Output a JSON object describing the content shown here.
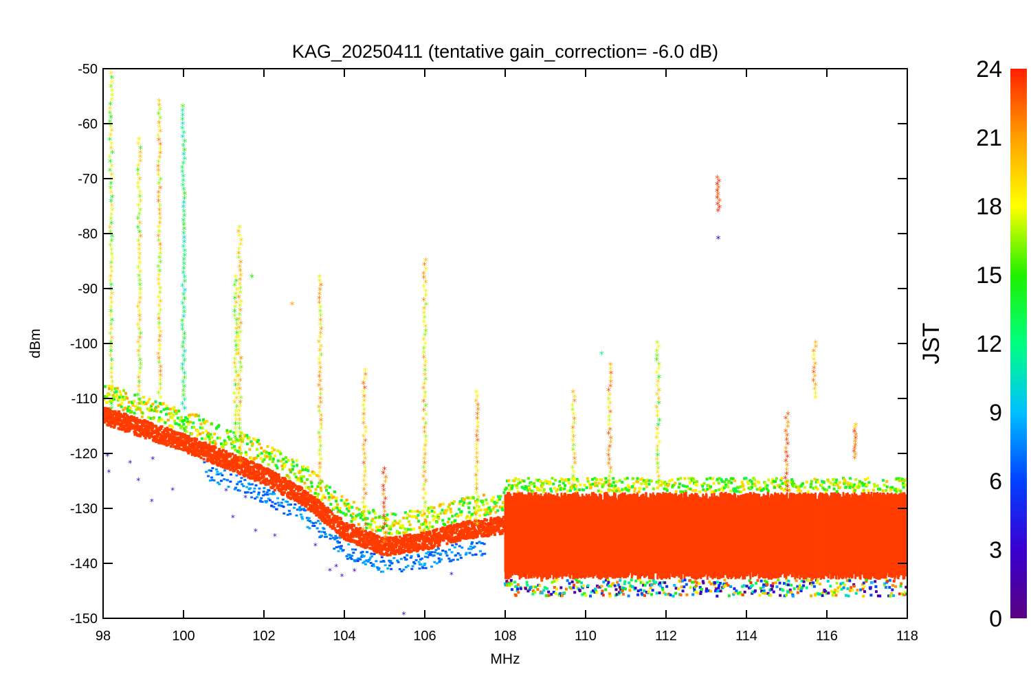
{
  "chart_data": {
    "type": "scatter",
    "title": "KAG_20250411 (tentative gain_correction= -6.0 dB)",
    "xlabel": "MHz",
    "ylabel": "dBm",
    "xlim": [
      98,
      118
    ],
    "ylim": [
      -150,
      -50
    ],
    "x_ticks": [
      98,
      100,
      102,
      104,
      106,
      108,
      110,
      112,
      114,
      116,
      118
    ],
    "y_ticks": [
      -50,
      -60,
      -70,
      -80,
      -90,
      -100,
      -110,
      -120,
      -130,
      -140,
      -150
    ],
    "grid": false,
    "colorbar": {
      "label": "JST",
      "range": [
        0,
        24
      ],
      "ticks": [
        0,
        3,
        6,
        9,
        12,
        15,
        18,
        21,
        24
      ],
      "colormap": "rainbow"
    },
    "noise_floor_fm": [
      {
        "x": 98.0,
        "y": -113
      },
      {
        "x": 100.0,
        "y": -118
      },
      {
        "x": 102.0,
        "y": -124
      },
      {
        "x": 103.0,
        "y": -128
      },
      {
        "x": 104.0,
        "y": -134
      },
      {
        "x": 105.0,
        "y": -137
      },
      {
        "x": 106.0,
        "y": -136
      },
      {
        "x": 107.0,
        "y": -134
      },
      {
        "x": 108.0,
        "y": -133
      }
    ],
    "noise_band_air": {
      "x_start": 108.0,
      "x_end": 118.0,
      "y_low": -143,
      "y_high": -127
    },
    "vertical_signals": [
      {
        "x": 98.2,
        "y_top": -51,
        "y_bottom": -112,
        "jst": 17
      },
      {
        "x": 98.9,
        "y_top": -63,
        "y_bottom": -112,
        "jst": 18
      },
      {
        "x": 99.4,
        "y_top": -56,
        "y_bottom": -110,
        "jst": 19
      },
      {
        "x": 100.0,
        "y_top": -57,
        "y_bottom": -112,
        "jst": 13
      },
      {
        "x": 101.3,
        "y_top": -88,
        "y_bottom": -118,
        "jst": 17
      },
      {
        "x": 101.4,
        "y_top": -79,
        "y_bottom": -122,
        "jst": 19
      },
      {
        "x": 103.4,
        "y_top": -88,
        "y_bottom": -126,
        "jst": 19
      },
      {
        "x": 104.5,
        "y_top": -105,
        "y_bottom": -134,
        "jst": 20
      },
      {
        "x": 105.0,
        "y_top": -123,
        "y_bottom": -137,
        "jst": 23
      },
      {
        "x": 106.0,
        "y_top": -85,
        "y_bottom": -134,
        "jst": 19
      },
      {
        "x": 107.3,
        "y_top": -109,
        "y_bottom": -133,
        "jst": 20
      },
      {
        "x": 109.7,
        "y_top": -109,
        "y_bottom": -126,
        "jst": 19
      },
      {
        "x": 110.6,
        "y_top": -104,
        "y_bottom": -126,
        "jst": 20
      },
      {
        "x": 111.8,
        "y_top": -100,
        "y_bottom": -126,
        "jst": 17
      },
      {
        "x": 113.3,
        "y_top": -70,
        "y_bottom": -76,
        "jst": 23
      },
      {
        "x": 115.0,
        "y_top": -113,
        "y_bottom": -127,
        "jst": 23
      },
      {
        "x": 115.7,
        "y_top": -100,
        "y_bottom": -110,
        "jst": 20
      },
      {
        "x": 116.7,
        "y_top": -115,
        "y_bottom": -121,
        "jst": 23
      }
    ],
    "outliers": [
      {
        "x": 113.3,
        "y": -81,
        "jst": 3
      },
      {
        "x": 102.7,
        "y": -93,
        "jst": 21
      },
      {
        "x": 101.7,
        "y": -88,
        "jst": 15
      },
      {
        "x": 110.4,
        "y": -102,
        "jst": 12
      }
    ]
  },
  "colors": {
    "floor": "#ff3300",
    "background": "#ffffff",
    "axis": "#000000"
  }
}
